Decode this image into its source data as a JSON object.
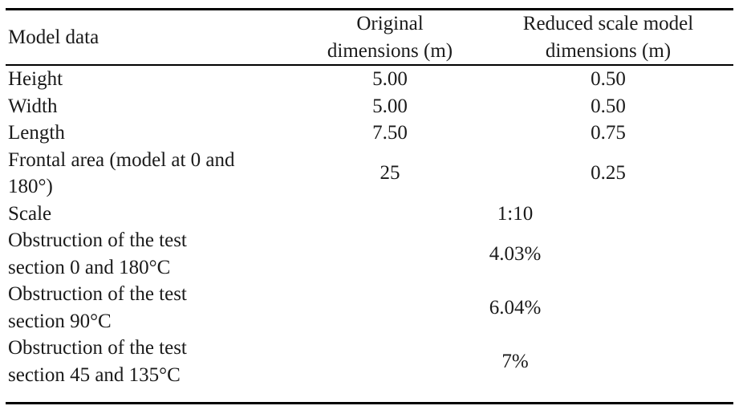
{
  "table": {
    "header": {
      "model_data": "Model data",
      "original_lines": [
        "Original",
        "dimensions (m)"
      ],
      "reduced_lines": [
        "Reduced scale model",
        "dimensions (m)"
      ]
    },
    "rows": [
      {
        "label_lines": [
          "Height"
        ],
        "original": "5.00",
        "reduced": "0.50"
      },
      {
        "label_lines": [
          "Width"
        ],
        "original": "5.00",
        "reduced": "0.50"
      },
      {
        "label_lines": [
          "Length"
        ],
        "original": "7.50",
        "reduced": "0.75"
      },
      {
        "label_lines": [
          "Frontal area (model at 0 and",
          "180°)"
        ],
        "original": "25",
        "reduced": "0.25"
      },
      {
        "label_lines": [
          "Scale"
        ],
        "merged_value": "1:10"
      },
      {
        "label_lines": [
          "Obstruction of the test",
          "section 0 and 180°C"
        ],
        "merged_value": "4.03%"
      },
      {
        "label_lines": [
          "Obstruction of the test",
          "section 90°C"
        ],
        "merged_value": "6.04%"
      },
      {
        "label_lines": [
          "Obstruction of the test",
          "section 45 and 135°C"
        ],
        "merged_value": "7%"
      }
    ],
    "colors": {
      "text": "#1a1a1a",
      "rule": "#000000",
      "background": "#ffffff"
    }
  }
}
